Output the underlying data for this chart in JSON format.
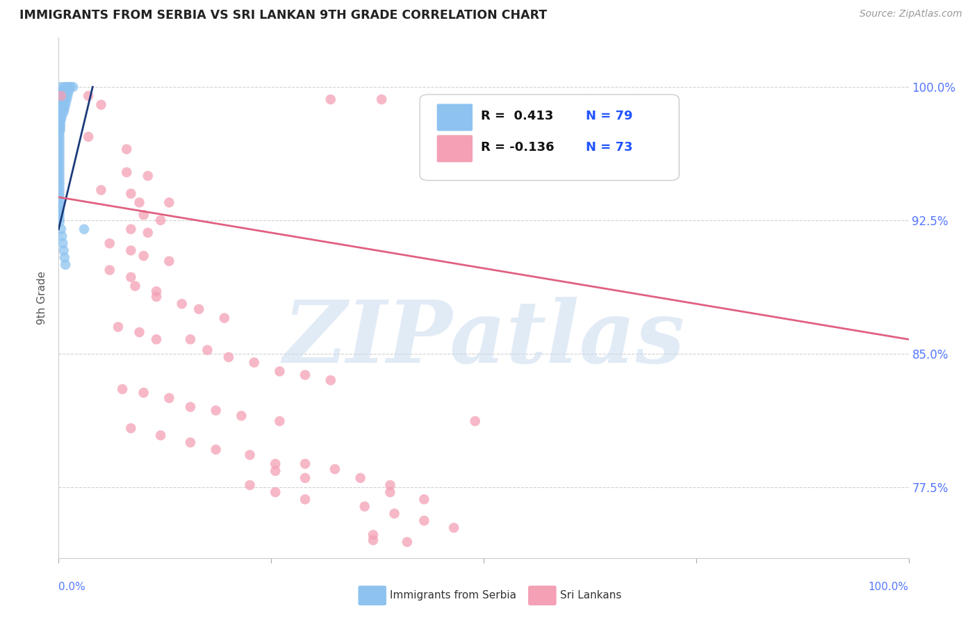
{
  "title": "IMMIGRANTS FROM SERBIA VS SRI LANKAN 9TH GRADE CORRELATION CHART",
  "source": "Source: ZipAtlas.com",
  "ylabel": "9th Grade",
  "ytick_values": [
    0.775,
    0.85,
    0.925,
    1.0
  ],
  "xmin": 0.0,
  "xmax": 1.0,
  "ymin": 0.735,
  "ymax": 1.028,
  "legend_r_blue": "R =  0.413",
  "legend_n_blue": "N = 79",
  "legend_r_pink": "R = -0.136",
  "legend_n_pink": "N = 73",
  "legend_label_blue": "Immigrants from Serbia",
  "legend_label_pink": "Sri Lankans",
  "blue_color": "#8ec3f0",
  "pink_color": "#f4a0b5",
  "trendline_blue_color": "#1a3a7a",
  "trendline_pink_color": "#e06080",
  "blue_scatter": [
    [
      0.003,
      1.0
    ],
    [
      0.007,
      1.0
    ],
    [
      0.01,
      1.0
    ],
    [
      0.013,
      1.0
    ],
    [
      0.003,
      0.998
    ],
    [
      0.006,
      0.998
    ],
    [
      0.009,
      0.998
    ],
    [
      0.012,
      0.998
    ],
    [
      0.002,
      0.996
    ],
    [
      0.005,
      0.996
    ],
    [
      0.008,
      0.996
    ],
    [
      0.011,
      0.996
    ],
    [
      0.002,
      0.994
    ],
    [
      0.004,
      0.994
    ],
    [
      0.007,
      0.994
    ],
    [
      0.01,
      0.994
    ],
    [
      0.002,
      0.992
    ],
    [
      0.004,
      0.992
    ],
    [
      0.006,
      0.992
    ],
    [
      0.009,
      0.992
    ],
    [
      0.001,
      0.99
    ],
    [
      0.003,
      0.99
    ],
    [
      0.005,
      0.99
    ],
    [
      0.008,
      0.99
    ],
    [
      0.001,
      0.988
    ],
    [
      0.003,
      0.988
    ],
    [
      0.005,
      0.988
    ],
    [
      0.007,
      0.988
    ],
    [
      0.001,
      0.986
    ],
    [
      0.002,
      0.986
    ],
    [
      0.004,
      0.986
    ],
    [
      0.006,
      0.986
    ],
    [
      0.001,
      0.984
    ],
    [
      0.002,
      0.984
    ],
    [
      0.004,
      0.984
    ],
    [
      0.001,
      0.982
    ],
    [
      0.002,
      0.982
    ],
    [
      0.003,
      0.982
    ],
    [
      0.001,
      0.98
    ],
    [
      0.002,
      0.98
    ],
    [
      0.001,
      0.978
    ],
    [
      0.002,
      0.978
    ],
    [
      0.001,
      0.976
    ],
    [
      0.002,
      0.976
    ],
    [
      0.001,
      0.974
    ],
    [
      0.001,
      0.972
    ],
    [
      0.001,
      0.97
    ],
    [
      0.001,
      0.968
    ],
    [
      0.001,
      0.966
    ],
    [
      0.001,
      0.964
    ],
    [
      0.001,
      0.962
    ],
    [
      0.001,
      0.96
    ],
    [
      0.001,
      0.958
    ],
    [
      0.001,
      0.956
    ],
    [
      0.001,
      0.954
    ],
    [
      0.001,
      0.952
    ],
    [
      0.001,
      0.95
    ],
    [
      0.001,
      0.948
    ],
    [
      0.001,
      0.946
    ],
    [
      0.001,
      0.944
    ],
    [
      0.001,
      0.942
    ],
    [
      0.001,
      0.94
    ],
    [
      0.001,
      0.938
    ],
    [
      0.001,
      0.936
    ],
    [
      0.001,
      0.934
    ],
    [
      0.001,
      0.932
    ],
    [
      0.001,
      0.93
    ],
    [
      0.001,
      0.928
    ],
    [
      0.001,
      0.926
    ],
    [
      0.001,
      0.924
    ],
    [
      0.014,
      1.0
    ],
    [
      0.017,
      1.0
    ],
    [
      0.003,
      0.92
    ],
    [
      0.004,
      0.916
    ],
    [
      0.005,
      0.912
    ],
    [
      0.006,
      0.908
    ],
    [
      0.007,
      0.904
    ],
    [
      0.008,
      0.9
    ],
    [
      0.03,
      0.92
    ]
  ],
  "blue_trendline_x": [
    0.0,
    0.04
  ],
  "blue_trendline_y": [
    0.92,
    1.0
  ],
  "pink_scatter": [
    [
      0.003,
      0.995
    ],
    [
      0.035,
      0.995
    ],
    [
      0.05,
      0.99
    ],
    [
      0.32,
      0.993
    ],
    [
      0.38,
      0.993
    ],
    [
      0.62,
      0.993
    ],
    [
      0.68,
      0.993
    ],
    [
      0.035,
      0.972
    ],
    [
      0.08,
      0.965
    ],
    [
      0.08,
      0.952
    ],
    [
      0.105,
      0.95
    ],
    [
      0.05,
      0.942
    ],
    [
      0.085,
      0.94
    ],
    [
      0.095,
      0.935
    ],
    [
      0.13,
      0.935
    ],
    [
      0.1,
      0.928
    ],
    [
      0.12,
      0.925
    ],
    [
      0.085,
      0.92
    ],
    [
      0.105,
      0.918
    ],
    [
      0.06,
      0.912
    ],
    [
      0.085,
      0.908
    ],
    [
      0.1,
      0.905
    ],
    [
      0.13,
      0.902
    ],
    [
      0.06,
      0.897
    ],
    [
      0.085,
      0.893
    ],
    [
      0.09,
      0.888
    ],
    [
      0.115,
      0.885
    ],
    [
      0.115,
      0.882
    ],
    [
      0.145,
      0.878
    ],
    [
      0.165,
      0.875
    ],
    [
      0.195,
      0.87
    ],
    [
      0.07,
      0.865
    ],
    [
      0.095,
      0.862
    ],
    [
      0.115,
      0.858
    ],
    [
      0.155,
      0.858
    ],
    [
      0.175,
      0.852
    ],
    [
      0.2,
      0.848
    ],
    [
      0.23,
      0.845
    ],
    [
      0.26,
      0.84
    ],
    [
      0.29,
      0.838
    ],
    [
      0.32,
      0.835
    ],
    [
      0.075,
      0.83
    ],
    [
      0.1,
      0.828
    ],
    [
      0.13,
      0.825
    ],
    [
      0.155,
      0.82
    ],
    [
      0.185,
      0.818
    ],
    [
      0.215,
      0.815
    ],
    [
      0.26,
      0.812
    ],
    [
      0.49,
      0.812
    ],
    [
      0.085,
      0.808
    ],
    [
      0.12,
      0.804
    ],
    [
      0.155,
      0.8
    ],
    [
      0.185,
      0.796
    ],
    [
      0.225,
      0.793
    ],
    [
      0.255,
      0.788
    ],
    [
      0.255,
      0.784
    ],
    [
      0.29,
      0.78
    ],
    [
      0.225,
      0.776
    ],
    [
      0.255,
      0.772
    ],
    [
      0.29,
      0.768
    ],
    [
      0.29,
      0.788
    ],
    [
      0.325,
      0.785
    ],
    [
      0.355,
      0.78
    ],
    [
      0.39,
      0.776
    ],
    [
      0.39,
      0.772
    ],
    [
      0.43,
      0.768
    ],
    [
      0.36,
      0.764
    ],
    [
      0.395,
      0.76
    ],
    [
      0.43,
      0.756
    ],
    [
      0.465,
      0.752
    ],
    [
      0.37,
      0.748
    ],
    [
      0.41,
      0.744
    ],
    [
      0.37,
      0.745
    ]
  ],
  "pink_trendline_x": [
    0.0,
    1.0
  ],
  "pink_trendline_y": [
    0.938,
    0.858
  ],
  "watermark_text": "ZIPatlas",
  "background_color": "#ffffff",
  "grid_color": "#d0d0d0"
}
